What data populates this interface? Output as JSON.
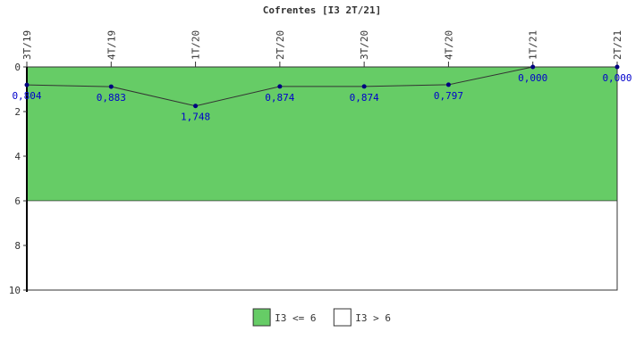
{
  "chart_data": {
    "type": "line",
    "title": "Cofrentes [I3 2T/21]",
    "categories": [
      "3T/19",
      "4T/19",
      "1T/20",
      "2T/20",
      "3T/20",
      "4T/20",
      "1T/21",
      "2T/21"
    ],
    "series": [
      {
        "values": [
          0.804,
          0.883,
          1.748,
          0.874,
          0.874,
          0.797,
          0.0,
          0.0
        ],
        "labels": [
          "0,804",
          "0,883",
          "1,748",
          "0,874",
          "0,874",
          "0,797",
          "0,000",
          "0,000"
        ],
        "line_color": "#333333",
        "marker_color": "#000080"
      }
    ],
    "y_axis": {
      "min": 0,
      "max": 10,
      "inverted": true,
      "ticks": [
        0,
        2,
        4,
        6,
        8,
        10
      ],
      "tick_labels": [
        "0",
        "2",
        "4",
        "6",
        "8",
        "10"
      ]
    },
    "x_axis": {
      "position": "top",
      "tick_label_rotation": -90
    },
    "bands": [
      {
        "from": 0,
        "to": 6,
        "color": "#66cc66"
      },
      {
        "from": 6,
        "to": 10,
        "color": "#ffffff"
      }
    ],
    "legend": {
      "placement": "bottom-center",
      "items": [
        {
          "label": "I3 <= 6",
          "color": "#66cc66"
        },
        {
          "label": "I3 > 6",
          "color": "#ffffff"
        }
      ]
    },
    "grid": false
  }
}
